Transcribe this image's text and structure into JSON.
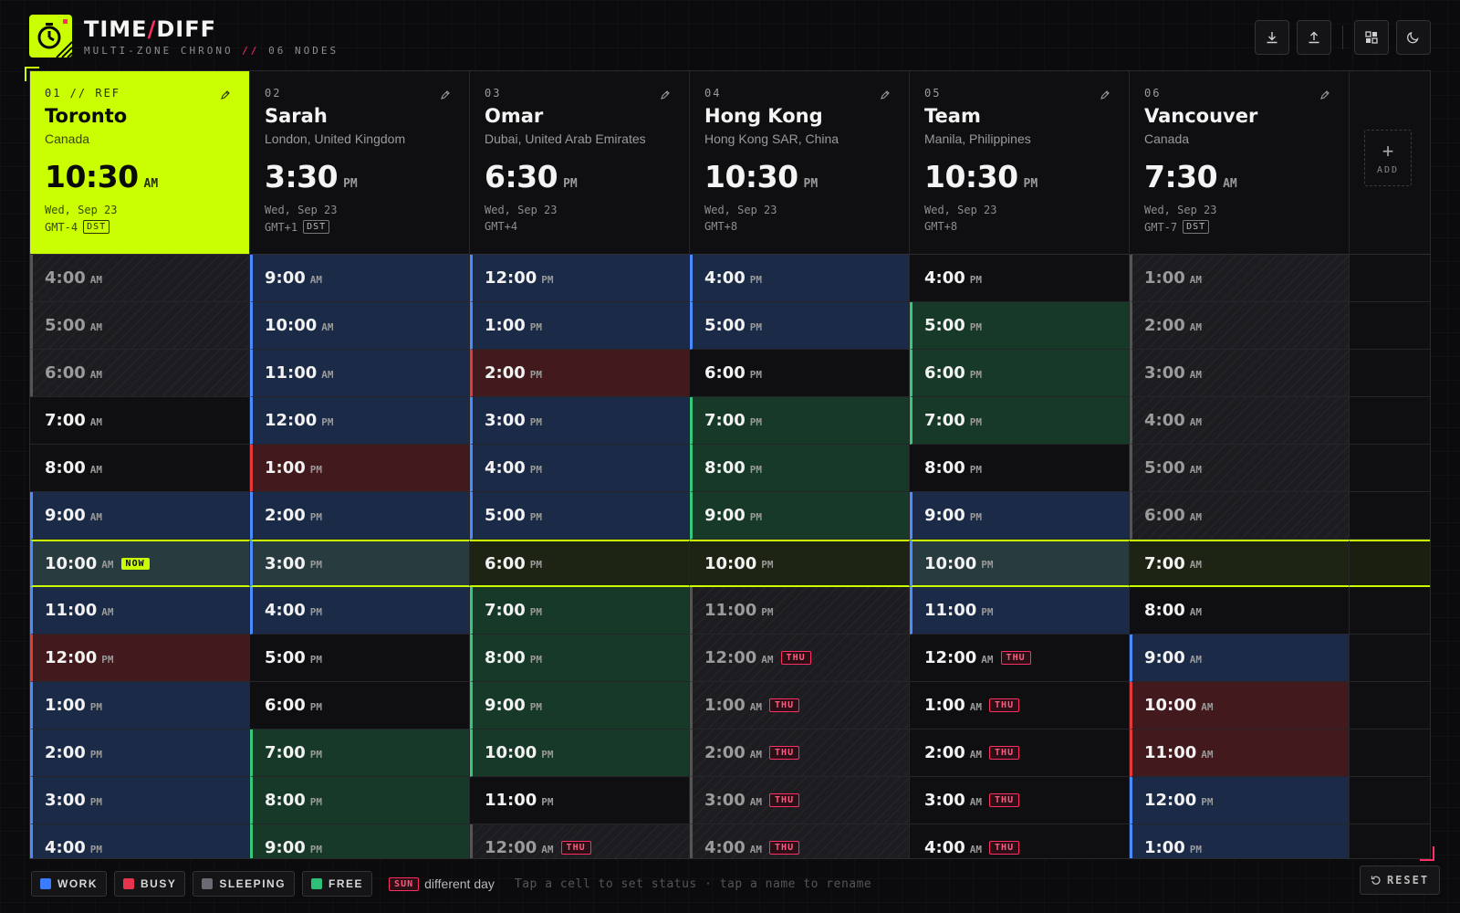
{
  "app": {
    "title_left": "TIME",
    "title_slash": "/",
    "title_right": "DIFF",
    "subtitle": "MULTI-ZONE CHRONO",
    "subtitle_sep": "//",
    "nodes": "06 NODES"
  },
  "toolbar": {
    "icons": [
      "download-icon",
      "upload-icon",
      "layout-icon",
      "moon-icon"
    ]
  },
  "add_label": "ADD",
  "columns": [
    {
      "index": "01 // REF",
      "name": "Toronto",
      "location": "Canada",
      "time": "10:30",
      "ampm": "AM",
      "date": "Wed, Sep 23",
      "gmt": "GMT-4",
      "dst": "DST"
    },
    {
      "index": "02",
      "name": "Sarah",
      "location": "London, United Kingdom",
      "time": "3:30",
      "ampm": "PM",
      "date": "Wed, Sep 23",
      "gmt": "GMT+1",
      "dst": "DST"
    },
    {
      "index": "03",
      "name": "Omar",
      "location": "Dubai, United Arab Emirates",
      "time": "6:30",
      "ampm": "PM",
      "date": "Wed, Sep 23",
      "gmt": "GMT+4",
      "dst": ""
    },
    {
      "index": "04",
      "name": "Hong Kong",
      "location": "Hong Kong SAR, China",
      "time": "10:30",
      "ampm": "PM",
      "date": "Wed, Sep 23",
      "gmt": "GMT+8",
      "dst": ""
    },
    {
      "index": "05",
      "name": "Team",
      "location": "Manila, Philippines",
      "time": "10:30",
      "ampm": "PM",
      "date": "Wed, Sep 23",
      "gmt": "GMT+8",
      "dst": ""
    },
    {
      "index": "06",
      "name": "Vancouver",
      "location": "Canada",
      "time": "7:30",
      "ampm": "AM",
      "date": "Wed, Sep 23",
      "gmt": "GMT-7",
      "dst": "DST"
    }
  ],
  "rows": [
    [
      {
        "t": "4:00",
        "ap": "AM",
        "s": "sleep"
      },
      {
        "t": "9:00",
        "ap": "AM",
        "s": "work"
      },
      {
        "t": "12:00",
        "ap": "PM",
        "s": "work"
      },
      {
        "t": "4:00",
        "ap": "PM",
        "s": "work"
      },
      {
        "t": "4:00",
        "ap": "PM",
        "s": ""
      },
      {
        "t": "1:00",
        "ap": "AM",
        "s": "sleep"
      }
    ],
    [
      {
        "t": "5:00",
        "ap": "AM",
        "s": "sleep"
      },
      {
        "t": "10:00",
        "ap": "AM",
        "s": "work"
      },
      {
        "t": "1:00",
        "ap": "PM",
        "s": "work"
      },
      {
        "t": "5:00",
        "ap": "PM",
        "s": "work"
      },
      {
        "t": "5:00",
        "ap": "PM",
        "s": "free"
      },
      {
        "t": "2:00",
        "ap": "AM",
        "s": "sleep"
      }
    ],
    [
      {
        "t": "6:00",
        "ap": "AM",
        "s": "sleep"
      },
      {
        "t": "11:00",
        "ap": "AM",
        "s": "work"
      },
      {
        "t": "2:00",
        "ap": "PM",
        "s": "busy"
      },
      {
        "t": "6:00",
        "ap": "PM",
        "s": ""
      },
      {
        "t": "6:00",
        "ap": "PM",
        "s": "free"
      },
      {
        "t": "3:00",
        "ap": "AM",
        "s": "sleep"
      }
    ],
    [
      {
        "t": "7:00",
        "ap": "AM",
        "s": ""
      },
      {
        "t": "12:00",
        "ap": "PM",
        "s": "work"
      },
      {
        "t": "3:00",
        "ap": "PM",
        "s": "work"
      },
      {
        "t": "7:00",
        "ap": "PM",
        "s": "free"
      },
      {
        "t": "7:00",
        "ap": "PM",
        "s": "free"
      },
      {
        "t": "4:00",
        "ap": "AM",
        "s": "sleep"
      }
    ],
    [
      {
        "t": "8:00",
        "ap": "AM",
        "s": ""
      },
      {
        "t": "1:00",
        "ap": "PM",
        "s": "busy"
      },
      {
        "t": "4:00",
        "ap": "PM",
        "s": "work"
      },
      {
        "t": "8:00",
        "ap": "PM",
        "s": "free"
      },
      {
        "t": "8:00",
        "ap": "PM",
        "s": ""
      },
      {
        "t": "5:00",
        "ap": "AM",
        "s": "sleep"
      }
    ],
    [
      {
        "t": "9:00",
        "ap": "AM",
        "s": "work"
      },
      {
        "t": "2:00",
        "ap": "PM",
        "s": "work"
      },
      {
        "t": "5:00",
        "ap": "PM",
        "s": "work"
      },
      {
        "t": "9:00",
        "ap": "PM",
        "s": "free"
      },
      {
        "t": "9:00",
        "ap": "PM",
        "s": "work"
      },
      {
        "t": "6:00",
        "ap": "AM",
        "s": "sleep"
      }
    ],
    [
      {
        "t": "10:00",
        "ap": "AM",
        "s": "work",
        "now": "NOW"
      },
      {
        "t": "3:00",
        "ap": "PM",
        "s": "work"
      },
      {
        "t": "6:00",
        "ap": "PM",
        "s": ""
      },
      {
        "t": "10:00",
        "ap": "PM",
        "s": ""
      },
      {
        "t": "10:00",
        "ap": "PM",
        "s": "work"
      },
      {
        "t": "7:00",
        "ap": "AM",
        "s": ""
      }
    ],
    [
      {
        "t": "11:00",
        "ap": "AM",
        "s": "work"
      },
      {
        "t": "4:00",
        "ap": "PM",
        "s": "work"
      },
      {
        "t": "7:00",
        "ap": "PM",
        "s": "free"
      },
      {
        "t": "11:00",
        "ap": "PM",
        "s": "sleep"
      },
      {
        "t": "11:00",
        "ap": "PM",
        "s": "work"
      },
      {
        "t": "8:00",
        "ap": "AM",
        "s": ""
      }
    ],
    [
      {
        "t": "12:00",
        "ap": "PM",
        "s": "busy"
      },
      {
        "t": "5:00",
        "ap": "PM",
        "s": ""
      },
      {
        "t": "8:00",
        "ap": "PM",
        "s": "free"
      },
      {
        "t": "12:00",
        "ap": "AM",
        "s": "sleep",
        "day": "THU"
      },
      {
        "t": "12:00",
        "ap": "AM",
        "s": "",
        "day": "THU"
      },
      {
        "t": "9:00",
        "ap": "AM",
        "s": "work"
      }
    ],
    [
      {
        "t": "1:00",
        "ap": "PM",
        "s": "work"
      },
      {
        "t": "6:00",
        "ap": "PM",
        "s": ""
      },
      {
        "t": "9:00",
        "ap": "PM",
        "s": "free"
      },
      {
        "t": "1:00",
        "ap": "AM",
        "s": "sleep",
        "day": "THU"
      },
      {
        "t": "1:00",
        "ap": "AM",
        "s": "",
        "day": "THU"
      },
      {
        "t": "10:00",
        "ap": "AM",
        "s": "busy"
      }
    ],
    [
      {
        "t": "2:00",
        "ap": "PM",
        "s": "work"
      },
      {
        "t": "7:00",
        "ap": "PM",
        "s": "free"
      },
      {
        "t": "10:00",
        "ap": "PM",
        "s": "free"
      },
      {
        "t": "2:00",
        "ap": "AM",
        "s": "sleep",
        "day": "THU"
      },
      {
        "t": "2:00",
        "ap": "AM",
        "s": "",
        "day": "THU"
      },
      {
        "t": "11:00",
        "ap": "AM",
        "s": "busy"
      }
    ],
    [
      {
        "t": "3:00",
        "ap": "PM",
        "s": "work"
      },
      {
        "t": "8:00",
        "ap": "PM",
        "s": "free"
      },
      {
        "t": "11:00",
        "ap": "PM",
        "s": ""
      },
      {
        "t": "3:00",
        "ap": "AM",
        "s": "sleep",
        "day": "THU"
      },
      {
        "t": "3:00",
        "ap": "AM",
        "s": "",
        "day": "THU"
      },
      {
        "t": "12:00",
        "ap": "PM",
        "s": "work"
      }
    ],
    [
      {
        "t": "4:00",
        "ap": "PM",
        "s": "work"
      },
      {
        "t": "9:00",
        "ap": "PM",
        "s": "free"
      },
      {
        "t": "12:00",
        "ap": "AM",
        "s": "sleep",
        "day": "THU"
      },
      {
        "t": "4:00",
        "ap": "AM",
        "s": "sleep",
        "day": "THU"
      },
      {
        "t": "4:00",
        "ap": "AM",
        "s": "",
        "day": "THU"
      },
      {
        "t": "1:00",
        "ap": "PM",
        "s": "work"
      }
    ]
  ],
  "now_row": 6,
  "legend": [
    {
      "label": "WORK",
      "color": "#3b7bff"
    },
    {
      "label": "BUSY",
      "color": "#e8344c"
    },
    {
      "label": "SLEEPING",
      "color": "#6a6a72"
    },
    {
      "label": "FREE",
      "color": "#2fbf78"
    }
  ],
  "day_badge": "SUN",
  "day_badge_text": "different day",
  "hint": "Tap a cell to set status · tap a name to rename",
  "reset_label": "RESET",
  "colors": {
    "accent": "#c9ff00",
    "highlight": "#ff2e63"
  }
}
